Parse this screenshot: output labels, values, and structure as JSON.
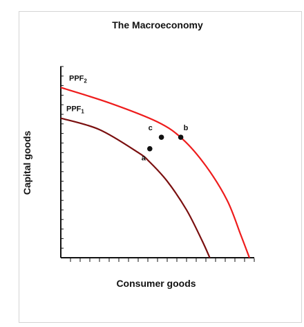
{
  "chart_data": {
    "type": "line",
    "title": "The Macroeconomy",
    "xlabel": "Consumer goods",
    "ylabel": "Capital goods",
    "xlim": [
      0,
      10
    ],
    "ylim": [
      0,
      10
    ],
    "grid": false,
    "series": [
      {
        "name": "PPF1",
        "label_main": "PPF",
        "label_sub": "1",
        "color": "#7a0f0f",
        "x": [
          0,
          2,
          4,
          4.6,
          5.5,
          6.5,
          7.3,
          7.7
        ],
        "y": [
          7.3,
          6.7,
          5.5,
          5.0,
          4.0,
          2.5,
          0.9,
          0
        ]
      },
      {
        "name": "PPF2",
        "label_main": "PPF",
        "label_sub": "2",
        "color": "#ee1c1c",
        "x": [
          0,
          2.5,
          5,
          6.3,
          7.5,
          8.6,
          9.3,
          9.75
        ],
        "y": [
          8.9,
          8.1,
          7.1,
          6.2,
          4.8,
          3.0,
          1.2,
          0
        ]
      }
    ],
    "points": [
      {
        "label": "a",
        "x": 4.6,
        "y": 5.7
      },
      {
        "label": "c",
        "x": 5.2,
        "y": 6.3
      },
      {
        "label": "b",
        "x": 6.2,
        "y": 6.3
      }
    ],
    "colors": {
      "axis": "#111111",
      "point": "#111111"
    }
  }
}
